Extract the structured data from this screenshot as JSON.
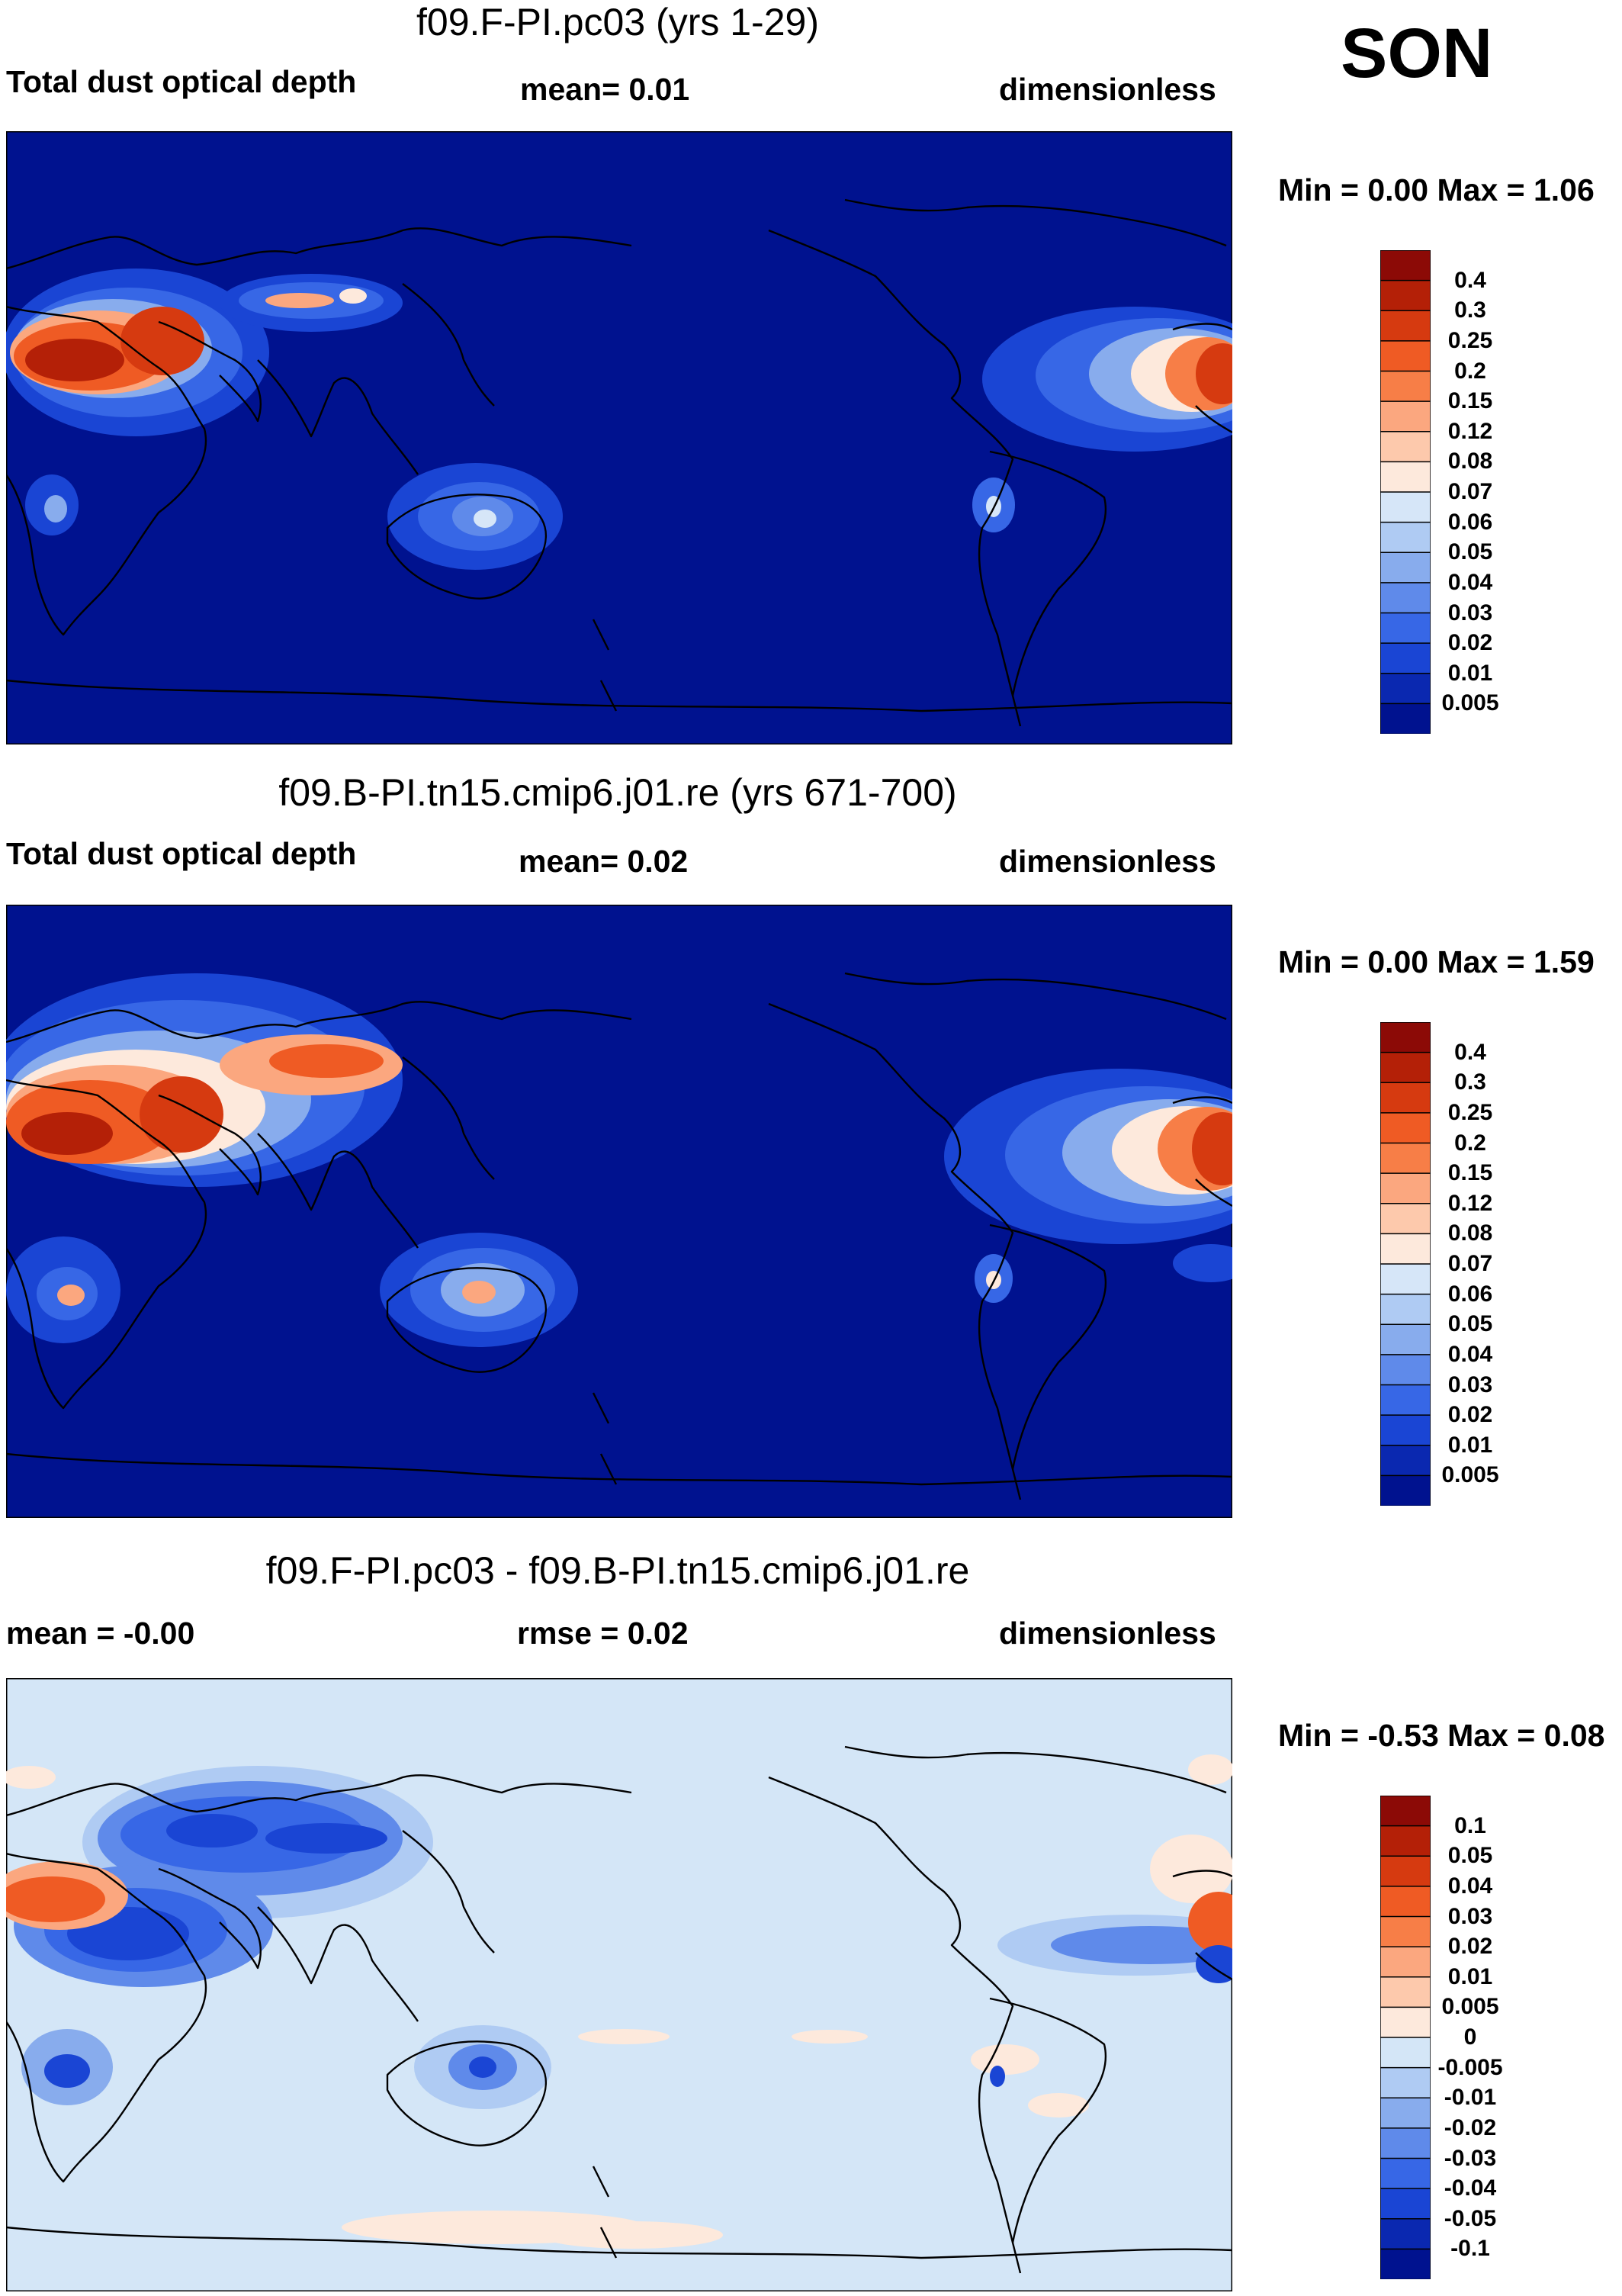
{
  "season": "SON",
  "panels": [
    {
      "title": "f09.F-PI.pc03 (yrs 1-29)",
      "left_label": "Total dust optical depth",
      "center_label": "mean=   0.01",
      "right_label": "dimensionless",
      "minmax": "Min =   0.00 Max =   1.06",
      "background": "#00128f",
      "levels": [
        "0.4",
        "0.3",
        "0.25",
        "0.2",
        "0.15",
        "0.12",
        "0.08",
        "0.07",
        "0.06",
        "0.05",
        "0.04",
        "0.03",
        "0.02",
        "0.01",
        "0.005"
      ],
      "colors": [
        "#8c0a06",
        "#b42007",
        "#d63a10",
        "#ef5b24",
        "#f77e47",
        "#fba77f",
        "#fdc9ac",
        "#fde9dc",
        "#d6e6f8",
        "#afcbf3",
        "#88aced",
        "#5f8aea",
        "#3767e6",
        "#1a45d4",
        "#0a28b0",
        "#00128f"
      ]
    },
    {
      "title": "f09.B-PI.tn15.cmip6.j01.re (yrs 671-700)",
      "left_label": "Total dust optical depth",
      "center_label": "mean=   0.02",
      "right_label": "dimensionless",
      "minmax": "Min =   0.00 Max =   1.59",
      "background": "#00128f",
      "levels": [
        "0.4",
        "0.3",
        "0.25",
        "0.2",
        "0.15",
        "0.12",
        "0.08",
        "0.07",
        "0.06",
        "0.05",
        "0.04",
        "0.03",
        "0.02",
        "0.01",
        "0.005"
      ],
      "colors": [
        "#8c0a06",
        "#b42007",
        "#d63a10",
        "#ef5b24",
        "#f77e47",
        "#fba77f",
        "#fdc9ac",
        "#fde9dc",
        "#d6e6f8",
        "#afcbf3",
        "#88aced",
        "#5f8aea",
        "#3767e6",
        "#1a45d4",
        "#0a28b0",
        "#00128f"
      ]
    },
    {
      "title": "f09.F-PI.pc03 - f09.B-PI.tn15.cmip6.j01.re",
      "left_label": "mean =  -0.00",
      "center_label": "rmse =    0.02",
      "right_label": "dimensionless",
      "minmax": "Min =  -0.53 Max =   0.08",
      "background": "#d4e6f7",
      "levels": [
        "0.1",
        "0.05",
        "0.04",
        "0.03",
        "0.02",
        "0.01",
        "0.005",
        "0",
        "-0.005",
        "-0.01",
        "-0.02",
        "-0.03",
        "-0.04",
        "-0.05",
        "-0.1"
      ],
      "colors": [
        "#8c0a06",
        "#b42007",
        "#d63a10",
        "#ef5b24",
        "#f77e47",
        "#fba77f",
        "#fdc9ac",
        "#fde9dc",
        "#d4e6f7",
        "#afcbf3",
        "#88aced",
        "#5f8aea",
        "#3767e6",
        "#1a45d4",
        "#0a28b0",
        "#00128f"
      ]
    }
  ]
}
